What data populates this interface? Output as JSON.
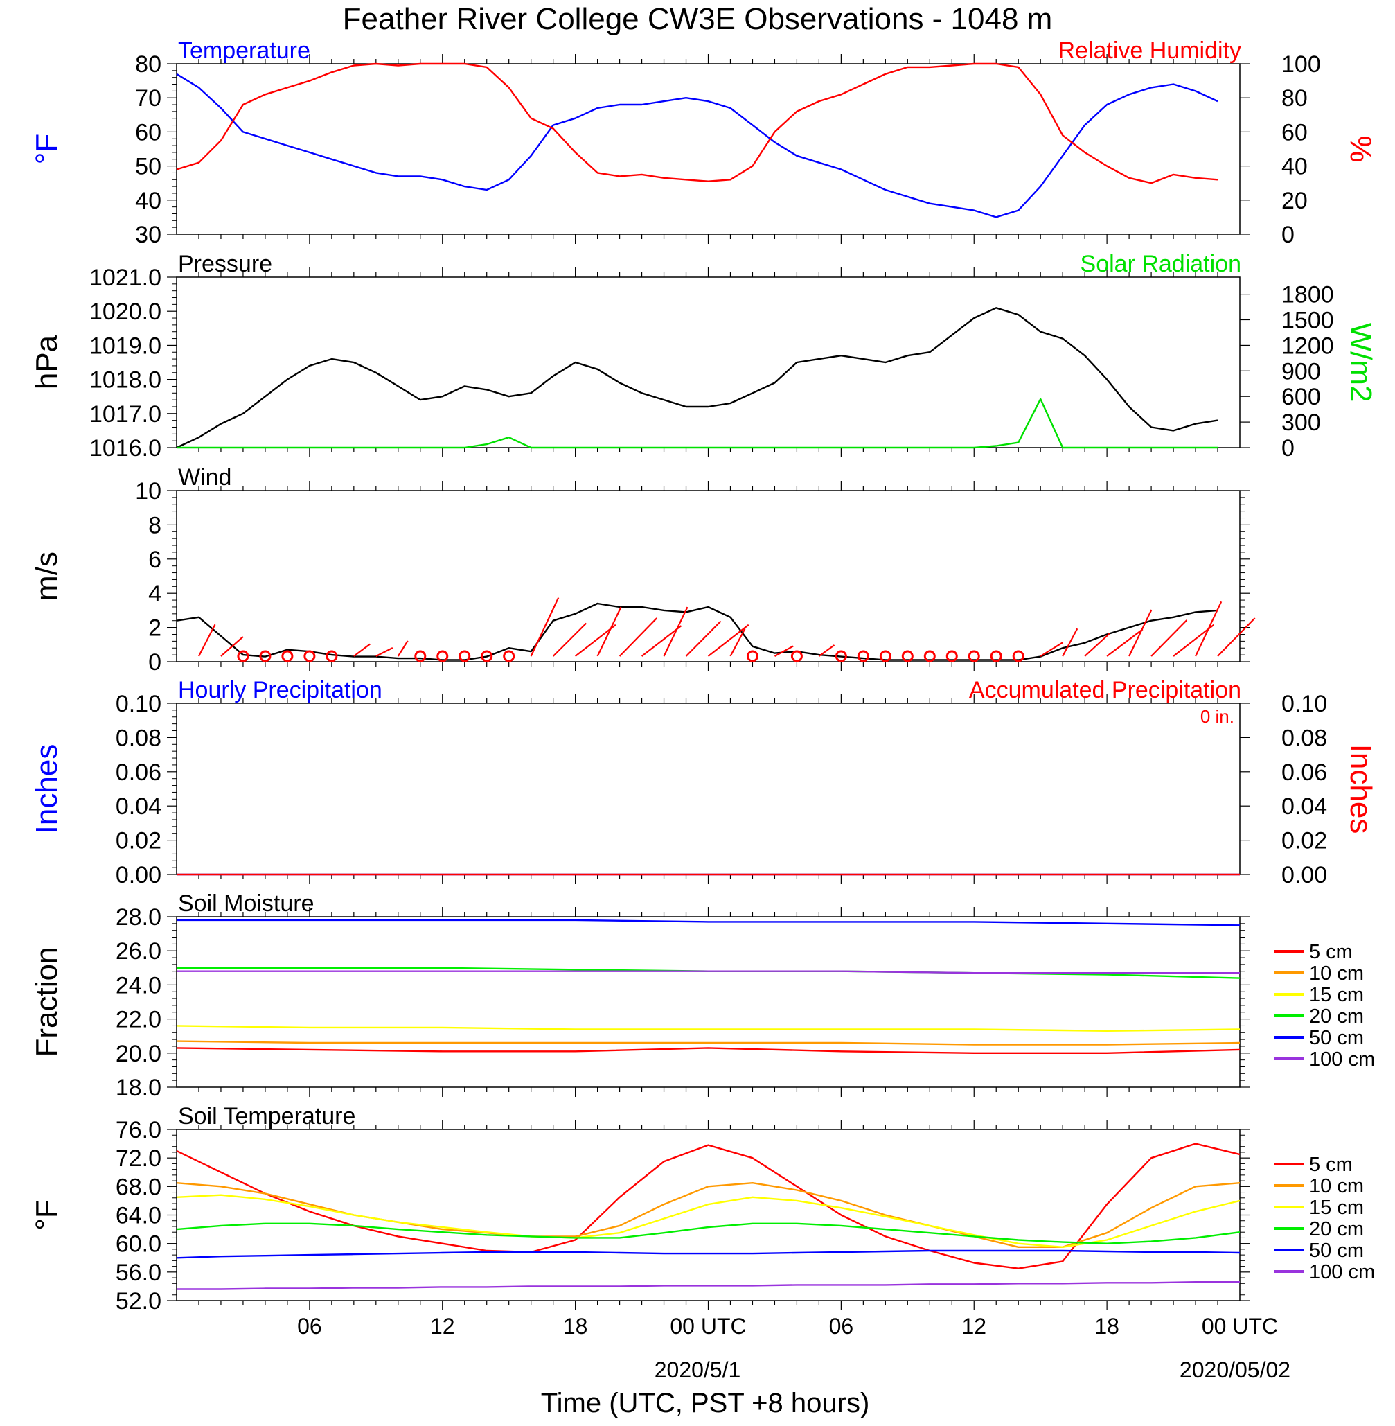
{
  "title": "Feather River College CW3E Observations - 1048 m",
  "xlabel": "Time (UTC, PST +8 hours)",
  "x_ticks": [
    "06",
    "12",
    "18",
    "00 UTC",
    "06",
    "12",
    "18",
    "00 UTC"
  ],
  "x_dates": [
    "2020/5/1",
    "2020/05/02"
  ],
  "colors": {
    "temperature": "#0000ff",
    "humidity": "#ff0000",
    "pressure": "#000000",
    "solar": "#00e000",
    "wind": "#000000",
    "barb": "#ff0000",
    "hourly": "#0000ff",
    "accum": "#ff0000",
    "depth_5": "#ff0000",
    "depth_10": "#ff9900",
    "depth_15": "#ffff00",
    "depth_20": "#00ee00",
    "depth_50": "#0000ff",
    "depth_100": "#9933dd"
  },
  "chart_data": [
    {
      "type": "line",
      "title": "",
      "left_label": "Temperature",
      "right_label": "Relative Humidity",
      "ylabel_left": "°F",
      "ylabel_right": "%",
      "ylim_left": [
        30,
        80
      ],
      "ylim_right": [
        0,
        100
      ],
      "yticks_left": [
        "30",
        "40",
        "50",
        "60",
        "70",
        "80"
      ],
      "yticks_right": [
        "0",
        "20",
        "40",
        "60",
        "80",
        "100"
      ],
      "x_hours": [
        0,
        1,
        2,
        3,
        4,
        5,
        6,
        7,
        8,
        9,
        10,
        11,
        12,
        13,
        14,
        15,
        16,
        17,
        18,
        19,
        20,
        21,
        22,
        23,
        24,
        25,
        26,
        27,
        28,
        29,
        30,
        31,
        32,
        33,
        34,
        35,
        36,
        37,
        38,
        39,
        40,
        41,
        42,
        43,
        44,
        45,
        46,
        47
      ],
      "series": [
        {
          "name": "Temperature",
          "axis": "left",
          "values": [
            77,
            73,
            67,
            60,
            58,
            56,
            54,
            52,
            50,
            48,
            47,
            47,
            46,
            44,
            43,
            46,
            53,
            62,
            64,
            67,
            68,
            68,
            69,
            70,
            69,
            67,
            62,
            57,
            53,
            51,
            49,
            46,
            43,
            41,
            39,
            38,
            37,
            35,
            37,
            44,
            53,
            62,
            68,
            71,
            73,
            74,
            72,
            69
          ]
        },
        {
          "name": "Relative Humidity",
          "axis": "right",
          "values": [
            38,
            42,
            55,
            76,
            82,
            86,
            90,
            95,
            99,
            100,
            99,
            100,
            100,
            100,
            98,
            86,
            68,
            62,
            48,
            36,
            34,
            35,
            33,
            32,
            31,
            32,
            40,
            60,
            72,
            78,
            82,
            88,
            94,
            98,
            98,
            99,
            100,
            100,
            98,
            82,
            58,
            48,
            40,
            33,
            30,
            35,
            33,
            32
          ]
        }
      ]
    },
    {
      "type": "line",
      "title": "",
      "left_label": "Pressure",
      "right_label": "Solar Radiation",
      "ylabel_left": "hPa",
      "ylabel_right": "W/m2",
      "ylim_left": [
        1016.0,
        1021.0
      ],
      "ylim_right": [
        0,
        2000
      ],
      "yticks_left": [
        "1016.0",
        "1017.0",
        "1018.0",
        "1019.0",
        "1020.0",
        "1021.0"
      ],
      "yticks_right": [
        "0",
        "300",
        "600",
        "900",
        "1200",
        "1500",
        "1800"
      ],
      "x_hours": [
        0,
        1,
        2,
        3,
        4,
        5,
        6,
        7,
        8,
        9,
        10,
        11,
        12,
        13,
        14,
        15,
        16,
        17,
        18,
        19,
        20,
        21,
        22,
        23,
        24,
        25,
        26,
        27,
        28,
        29,
        30,
        31,
        32,
        33,
        34,
        35,
        36,
        37,
        38,
        39,
        40,
        41,
        42,
        43,
        44,
        45,
        46,
        47
      ],
      "series": [
        {
          "name": "Pressure",
          "axis": "left",
          "values": [
            1016.0,
            1016.3,
            1016.7,
            1017.0,
            1017.5,
            1018.0,
            1018.4,
            1018.6,
            1018.5,
            1018.2,
            1017.8,
            1017.4,
            1017.5,
            1017.8,
            1017.7,
            1017.5,
            1017.6,
            1018.1,
            1018.5,
            1018.3,
            1017.9,
            1017.6,
            1017.4,
            1017.2,
            1017.2,
            1017.3,
            1017.6,
            1017.9,
            1018.5,
            1018.6,
            1018.7,
            1018.6,
            1018.5,
            1018.7,
            1018.8,
            1019.3,
            1019.8,
            1020.1,
            1019.9,
            1019.4,
            1019.2,
            1018.7,
            1018.0,
            1017.2,
            1016.6,
            1016.5,
            1016.7,
            1016.8
          ]
        },
        {
          "name": "Solar Radiation",
          "axis": "right",
          "values": [
            0,
            0,
            0,
            0,
            0,
            0,
            0,
            0,
            0,
            0,
            0,
            0,
            0,
            0,
            40,
            120,
            0,
            0,
            0,
            0,
            0,
            0,
            0,
            0,
            0,
            0,
            0,
            0,
            0,
            0,
            0,
            0,
            0,
            0,
            0,
            0,
            0,
            20,
            60,
            570,
            0,
            0,
            0,
            0,
            0,
            0,
            0,
            0
          ]
        }
      ]
    },
    {
      "type": "line",
      "title": "",
      "left_label": "Wind",
      "ylabel_left": "m/s",
      "ylim_left": [
        0,
        10
      ],
      "yticks_left": [
        "0",
        "2",
        "4",
        "6",
        "8",
        "10"
      ],
      "x_hours": [
        0,
        1,
        2,
        3,
        4,
        5,
        6,
        7,
        8,
        9,
        10,
        11,
        12,
        13,
        14,
        15,
        16,
        17,
        18,
        19,
        20,
        21,
        22,
        23,
        24,
        25,
        26,
        27,
        28,
        29,
        30,
        31,
        32,
        33,
        34,
        35,
        36,
        37,
        38,
        39,
        40,
        41,
        42,
        43,
        44,
        45,
        46,
        47
      ],
      "series": [
        {
          "name": "Wind",
          "axis": "left",
          "values": [
            2.4,
            2.6,
            1.5,
            0.4,
            0.3,
            0.7,
            0.6,
            0.4,
            0.3,
            0.3,
            0.2,
            0.2,
            0.1,
            0.1,
            0.3,
            0.8,
            0.6,
            2.4,
            2.8,
            3.4,
            3.2,
            3.2,
            3.0,
            2.9,
            3.2,
            2.6,
            0.9,
            0.5,
            0.6,
            0.4,
            0.3,
            0.2,
            0.1,
            0.1,
            0.1,
            0.1,
            0.1,
            0.1,
            0.1,
            0.3,
            0.8,
            1.1,
            1.6,
            2.0,
            2.4,
            2.6,
            2.9,
            3.0
          ]
        }
      ]
    },
    {
      "type": "line",
      "title": "",
      "left_label": "Hourly Precipitation",
      "right_label": "Accumulated Precipitation",
      "total_label": "0 in.",
      "ylabel_left": "Inches",
      "ylabel_right": "Inches",
      "ylim_left": [
        0.0,
        0.1
      ],
      "ylim_right": [
        0.0,
        0.1
      ],
      "yticks_left": [
        "0.00",
        "0.02",
        "0.04",
        "0.06",
        "0.08",
        "0.10"
      ],
      "yticks_right": [
        "0.00",
        "0.02",
        "0.04",
        "0.06",
        "0.08",
        "0.10"
      ],
      "x_hours": [
        0,
        48
      ],
      "series": [
        {
          "name": "Hourly Precipitation",
          "axis": "left",
          "values": [
            0,
            0
          ]
        },
        {
          "name": "Accumulated Precipitation",
          "axis": "right",
          "values": [
            0,
            0
          ]
        }
      ]
    },
    {
      "type": "line",
      "title": "",
      "left_label": "Soil Moisture",
      "ylabel_left": "Fraction",
      "ylim_left": [
        18.0,
        28.0
      ],
      "yticks_left": [
        "18.0",
        "20.0",
        "22.0",
        "24.0",
        "26.0",
        "28.0"
      ],
      "legend": [
        "5 cm",
        "10 cm",
        "15 cm",
        "20 cm",
        "50 cm",
        "100 cm"
      ],
      "x_hours": [
        0,
        6,
        12,
        18,
        24,
        30,
        36,
        42,
        48
      ],
      "series": [
        {
          "name": "5 cm",
          "axis": "left",
          "values": [
            20.3,
            20.2,
            20.1,
            20.1,
            20.3,
            20.1,
            20.0,
            20.0,
            20.2
          ]
        },
        {
          "name": "10 cm",
          "axis": "left",
          "values": [
            20.7,
            20.6,
            20.6,
            20.6,
            20.6,
            20.6,
            20.5,
            20.5,
            20.6
          ]
        },
        {
          "name": "15 cm",
          "axis": "left",
          "values": [
            21.6,
            21.5,
            21.5,
            21.4,
            21.4,
            21.4,
            21.4,
            21.3,
            21.4
          ]
        },
        {
          "name": "20 cm",
          "axis": "left",
          "values": [
            25.0,
            25.0,
            25.0,
            24.9,
            24.8,
            24.8,
            24.7,
            24.6,
            24.4
          ]
        },
        {
          "name": "50 cm",
          "axis": "left",
          "values": [
            27.8,
            27.8,
            27.8,
            27.8,
            27.7,
            27.7,
            27.7,
            27.6,
            27.5
          ]
        },
        {
          "name": "100 cm",
          "axis": "left",
          "values": [
            24.8,
            24.8,
            24.8,
            24.8,
            24.8,
            24.8,
            24.7,
            24.7,
            24.7
          ]
        }
      ]
    },
    {
      "type": "line",
      "title": "",
      "left_label": "Soil Temperature",
      "ylabel_left": "°F",
      "ylim_left": [
        52.0,
        76.0
      ],
      "yticks_left": [
        "52.0",
        "56.0",
        "60.0",
        "64.0",
        "68.0",
        "72.0",
        "76.0"
      ],
      "legend": [
        "5 cm",
        "10 cm",
        "15 cm",
        "20 cm",
        "50 cm",
        "100 cm"
      ],
      "x_hours": [
        0,
        2,
        4,
        6,
        8,
        10,
        12,
        14,
        16,
        18,
        20,
        22,
        24,
        26,
        28,
        30,
        32,
        34,
        36,
        38,
        40,
        42,
        44,
        46,
        48
      ],
      "series": [
        {
          "name": "5 cm",
          "axis": "left",
          "values": [
            73.0,
            70.0,
            67.0,
            64.5,
            62.5,
            61.0,
            60.0,
            59.0,
            58.8,
            60.5,
            66.5,
            71.5,
            73.8,
            72.0,
            68.0,
            64.0,
            61.0,
            59.0,
            57.3,
            56.5,
            57.5,
            65.5,
            72.0,
            74.0,
            72.5
          ]
        },
        {
          "name": "10 cm",
          "axis": "left",
          "values": [
            68.5,
            68.0,
            67.0,
            65.5,
            64.0,
            63.0,
            62.0,
            61.5,
            61.0,
            61.0,
            62.5,
            65.5,
            68.0,
            68.5,
            67.5,
            66.0,
            64.0,
            62.5,
            61.0,
            59.5,
            59.5,
            61.5,
            65.0,
            68.0,
            68.5
          ]
        },
        {
          "name": "15 cm",
          "axis": "left",
          "values": [
            66.5,
            66.8,
            66.2,
            65.2,
            64.0,
            63.0,
            62.3,
            61.6,
            61.0,
            60.8,
            61.5,
            63.5,
            65.5,
            66.5,
            66.0,
            65.0,
            63.8,
            62.5,
            61.2,
            60.0,
            59.5,
            60.5,
            62.5,
            64.5,
            66.0
          ]
        },
        {
          "name": "20 cm",
          "axis": "left",
          "values": [
            62.0,
            62.5,
            62.8,
            62.8,
            62.5,
            62.0,
            61.6,
            61.2,
            61.0,
            60.8,
            60.8,
            61.5,
            62.3,
            62.8,
            62.8,
            62.5,
            62.0,
            61.5,
            61.0,
            60.5,
            60.2,
            60.0,
            60.3,
            60.8,
            61.6
          ]
        },
        {
          "name": "50 cm",
          "axis": "left",
          "values": [
            58.0,
            58.2,
            58.3,
            58.4,
            58.5,
            58.6,
            58.7,
            58.8,
            58.8,
            58.8,
            58.7,
            58.6,
            58.6,
            58.6,
            58.7,
            58.8,
            58.9,
            59.0,
            59.0,
            59.0,
            59.0,
            58.9,
            58.8,
            58.8,
            58.7
          ]
        },
        {
          "name": "100 cm",
          "axis": "left",
          "values": [
            53.6,
            53.6,
            53.7,
            53.7,
            53.8,
            53.8,
            53.9,
            53.9,
            54.0,
            54.0,
            54.0,
            54.1,
            54.1,
            54.1,
            54.2,
            54.2,
            54.2,
            54.3,
            54.3,
            54.4,
            54.4,
            54.5,
            54.5,
            54.6,
            54.6
          ]
        }
      ]
    }
  ],
  "wind_barbs": {
    "x_hours": [
      1,
      2,
      3,
      4,
      5,
      6,
      7,
      8,
      9,
      10,
      11,
      12,
      13,
      14,
      15,
      16,
      17,
      18,
      19,
      20,
      21,
      22,
      23,
      24,
      25,
      26,
      27,
      28,
      29,
      30,
      31,
      32,
      33,
      34,
      35,
      36,
      37,
      38,
      39,
      40,
      41,
      42,
      43,
      44,
      45,
      46,
      47
    ],
    "speed": [
      1.5,
      1.2,
      0.4,
      0.3,
      0.2,
      0.2,
      0.2,
      0.5,
      0.4,
      0.3,
      0.2,
      0.2,
      0.4,
      0.3,
      0.2,
      3.5,
      2.5,
      3.0,
      2.8,
      3.0,
      2.9,
      2.8,
      2.7,
      3.0,
      1.2,
      0.3,
      0.6,
      0.5,
      0.4,
      0.4,
      0.2,
      0.2,
      0.2,
      0.2,
      0.2,
      0.2,
      0.2,
      0.2,
      1.0,
      1.2,
      1.5,
      2.5,
      2.6,
      2.8,
      3.0,
      3.2,
      3.0
    ],
    "calm": [
      false,
      false,
      true,
      true,
      true,
      true,
      true,
      false,
      false,
      false,
      true,
      true,
      true,
      true,
      true,
      false,
      false,
      false,
      false,
      false,
      false,
      false,
      false,
      false,
      false,
      true,
      false,
      true,
      false,
      true,
      true,
      true,
      true,
      true,
      true,
      true,
      true,
      true,
      false,
      false,
      false,
      false,
      false,
      false,
      false,
      false,
      false
    ]
  }
}
